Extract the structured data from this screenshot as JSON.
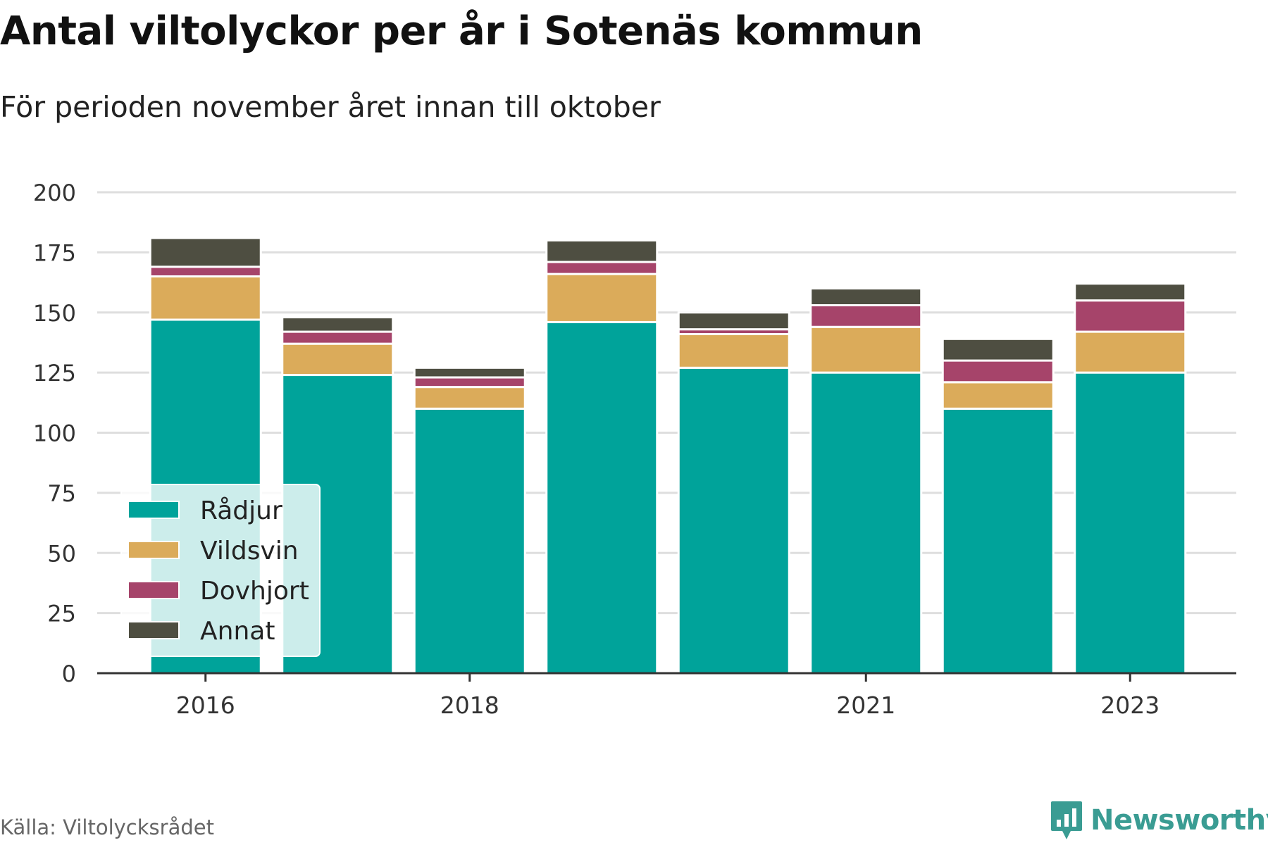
{
  "title": "Antal viltolyckor per år i Sotenäs kommun",
  "subtitle": "För perioden november året innan till oktober",
  "source": "Källa: Viltolycksrådet",
  "brand": "Newsworthy",
  "chart_data": {
    "type": "bar",
    "stacked": true,
    "categories": [
      "2016",
      "2017",
      "2018",
      "2019",
      "2020",
      "2021",
      "2022",
      "2023"
    ],
    "x_tick_labels": [
      "2016",
      "2018",
      "2021",
      "2023"
    ],
    "series": [
      {
        "name": "Rådjur",
        "color": "#00a39a",
        "values": [
          147,
          124,
          110,
          146,
          127,
          125,
          110,
          125
        ]
      },
      {
        "name": "Vildsvin",
        "color": "#dbab5a",
        "values": [
          18,
          13,
          9,
          20,
          14,
          19,
          11,
          17
        ]
      },
      {
        "name": "Dovhjort",
        "color": "#a6446a",
        "values": [
          4,
          5,
          4,
          5,
          2,
          9,
          9,
          13
        ]
      },
      {
        "name": "Annat",
        "color": "#4e4e41",
        "values": [
          12,
          6,
          4,
          9,
          7,
          7,
          9,
          7
        ]
      }
    ],
    "ylim": [
      0,
      200
    ],
    "yticks": [
      0,
      25,
      50,
      75,
      100,
      125,
      150,
      175,
      200
    ],
    "grid": true,
    "legend_position": "bottom-left"
  }
}
